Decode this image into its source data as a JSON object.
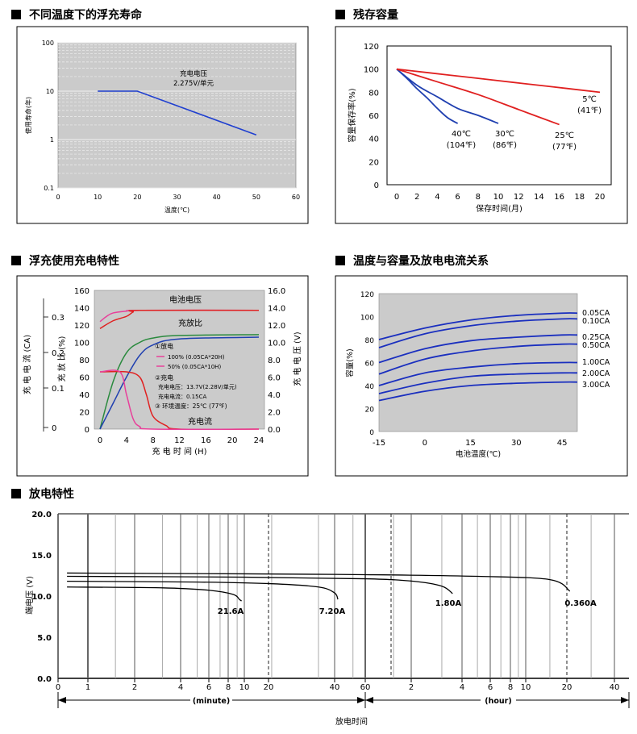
{
  "sections": {
    "s1": "不同温度下的浮充寿命",
    "s2": "残存容量",
    "s3": "浮充使用充电特性",
    "s4": "温度与容量及放电电流关系",
    "s5": "放电特性"
  },
  "chart_data": [
    {
      "id": "float-life",
      "type": "line",
      "xlabel": "温度(℃)",
      "ylabel": "使用寿命(年)",
      "xlim": [
        0,
        60
      ],
      "xticks": [
        "0",
        "10",
        "20",
        "30",
        "40",
        "50",
        "60"
      ],
      "ylim": [
        0.1,
        100
      ],
      "yscale": "log",
      "yticks": [
        "0.1",
        "1",
        "10",
        "100"
      ],
      "grid": true,
      "annotation": [
        "充电电压",
        "2.275V/单元"
      ],
      "series": [
        {
          "x": [
            10,
            20,
            50
          ],
          "y": [
            10,
            10,
            1.25
          ]
        }
      ]
    },
    {
      "id": "residual-capacity",
      "type": "line",
      "xlabel": "保存时间(月)",
      "ylabel": "容量保存率(%)",
      "xlim": [
        0,
        20
      ],
      "xticks": [
        "0",
        "2",
        "4",
        "6",
        "8",
        "10",
        "12",
        "14",
        "16",
        "18",
        "20"
      ],
      "ylim": [
        0,
        120
      ],
      "yticks": [
        "0",
        "20",
        "40",
        "60",
        "80",
        "100",
        "120"
      ],
      "series": [
        {
          "label": [
            "40℃",
            "(104℉)"
          ],
          "color": "#1f3fb0",
          "x": [
            0,
            1,
            2,
            3,
            4,
            5,
            6
          ],
          "y": [
            100,
            92,
            83,
            75,
            66,
            58,
            53
          ]
        },
        {
          "label": [
            "30℃",
            "(86℉)"
          ],
          "color": "#1f3fb0",
          "x": [
            0,
            2,
            4,
            6,
            8,
            10
          ],
          "y": [
            100,
            86,
            76,
            66,
            60,
            53
          ]
        },
        {
          "label": [
            "25℃",
            "(77℉)"
          ],
          "color": "#e02020",
          "x": [
            0,
            4,
            8,
            12,
            16
          ],
          "y": [
            100,
            89,
            78,
            65,
            52
          ]
        },
        {
          "label": [
            "5℃",
            "(41℉)"
          ],
          "color": "#e02020",
          "x": [
            0,
            5,
            10,
            15,
            20
          ],
          "y": [
            100,
            95,
            90,
            85,
            80
          ]
        }
      ]
    },
    {
      "id": "float-charge",
      "type": "line",
      "xlabel": "充 电 时 间 (H)",
      "xlim": [
        0,
        24
      ],
      "xticks": [
        "0",
        "4",
        "8",
        "12",
        "16",
        "20",
        "24"
      ],
      "y_left_outer": {
        "label": "充 电 电 流 (CA)",
        "ticks": [
          "0.3",
          "0.2",
          "0.1",
          "0"
        ]
      },
      "y_left": {
        "label": "充 放 比 (%)",
        "ticks": [
          "160",
          "140",
          "120",
          "100",
          "80",
          "60",
          "40",
          "20",
          "0"
        ]
      },
      "y_right": {
        "label": "充 电 电 压 (V)",
        "ticks": [
          "16.0",
          "14.0",
          "12.0",
          "10.0",
          "8.0",
          "6.0",
          "4.0",
          "2.0",
          "0.0"
        ]
      },
      "labels": {
        "voltage": "电池电压",
        "ratio": "充放比",
        "current": "充电流",
        "n1": "①放电",
        "n1a": "100% (0.05CA*20H)",
        "n1b": "50% (0.05CA*10H)",
        "n2": "②充电",
        "n2a": "充电电压：13.7V(2.28V/单元)",
        "n2b": "充电电流：0.15CA",
        "n3": "③ 环境温度：25℃ (77℉)"
      },
      "series": [
        {
          "name": "voltage_100",
          "color": "#e8409a",
          "axis": "voltage",
          "x": [
            0,
            1,
            2,
            4,
            6,
            24
          ],
          "y": [
            12.4,
            13.0,
            13.4,
            13.6,
            13.7,
            13.7
          ]
        },
        {
          "name": "voltage_50",
          "color": "#e02020",
          "axis": "voltage",
          "x": [
            0,
            2,
            4,
            5,
            6,
            24
          ],
          "y": [
            11.6,
            12.5,
            13.0,
            13.5,
            13.7,
            13.7
          ]
        },
        {
          "name": "ratio_100",
          "color": "#2a8a3e",
          "axis": "ratio",
          "x": [
            0,
            2,
            4,
            6,
            8,
            12,
            24
          ],
          "y": [
            0,
            55,
            88,
            100,
            105,
            108,
            109
          ]
        },
        {
          "name": "ratio_50",
          "color": "#1f3fb0",
          "axis": "ratio",
          "x": [
            0,
            2,
            4,
            6,
            8,
            12,
            24
          ],
          "y": [
            0,
            30,
            60,
            85,
            97,
            104,
            106
          ]
        },
        {
          "name": "current_100",
          "color": "#e02020",
          "axis": "ratio",
          "x": [
            0,
            4,
            6,
            7,
            8,
            10,
            12,
            24
          ],
          "y": [
            66,
            66,
            60,
            40,
            15,
            4,
            0,
            0
          ]
        },
        {
          "name": "current_50",
          "color": "#e8409a",
          "axis": "ratio",
          "x": [
            0,
            3,
            4,
            5,
            6,
            8,
            24
          ],
          "y": [
            66,
            66,
            40,
            12,
            3,
            0,
            0
          ]
        }
      ]
    },
    {
      "id": "temp-capacity",
      "type": "line",
      "xlabel": "电池温度(℃)",
      "ylabel": "容量(%)",
      "xlim": [
        -15,
        50
      ],
      "xticks": [
        "-15",
        "0",
        "15",
        "30",
        "45"
      ],
      "ylim": [
        0,
        120
      ],
      "yticks": [
        "0",
        "20",
        "40",
        "60",
        "80",
        "100",
        "120"
      ],
      "series": [
        {
          "name": "0.05CA",
          "x": [
            -15,
            0,
            15,
            30,
            45,
            50
          ],
          "y": [
            80,
            90,
            97,
            101,
            103,
            103
          ]
        },
        {
          "name": "0.10CA",
          "x": [
            -15,
            0,
            15,
            30,
            45,
            50
          ],
          "y": [
            73,
            85,
            92,
            96,
            98,
            98
          ]
        },
        {
          "name": "0.25CA",
          "x": [
            -15,
            0,
            15,
            30,
            45,
            50
          ],
          "y": [
            60,
            72,
            79,
            82,
            84,
            84
          ]
        },
        {
          "name": "0.50CA",
          "x": [
            -15,
            0,
            15,
            30,
            45,
            50
          ],
          "y": [
            50,
            63,
            70,
            74,
            76,
            76
          ]
        },
        {
          "name": "1.00CA",
          "x": [
            -15,
            0,
            15,
            30,
            45,
            50
          ],
          "y": [
            40,
            51,
            56,
            59,
            60,
            60
          ]
        },
        {
          "name": "2.00CA",
          "x": [
            -15,
            0,
            15,
            30,
            45,
            50
          ],
          "y": [
            33,
            42,
            48,
            50,
            51,
            51
          ]
        },
        {
          "name": "3.00CA",
          "x": [
            -15,
            0,
            15,
            30,
            45,
            50
          ],
          "y": [
            27,
            35,
            40,
            42,
            43,
            43
          ]
        }
      ]
    },
    {
      "id": "discharge",
      "type": "line",
      "xlabel": "放电时间",
      "ylabel": "端电压 (V)",
      "ylim": [
        0,
        20
      ],
      "yticks": [
        "0.0",
        "5.0",
        "10.0",
        "15.0",
        "20.0"
      ],
      "xticks": [
        "0",
        "1",
        "2",
        "4",
        "6",
        "8",
        "10",
        "20",
        "40",
        "60",
        "2",
        "4",
        "6",
        "8",
        "10",
        "20",
        "40"
      ],
      "unit_minute": "(minute)",
      "unit_hour": "(hour)",
      "series": [
        {
          "label": "21.6A",
          "t": [
            0.3,
            3,
            6,
            8.5,
            9.3,
            9.6
          ],
          "y": [
            11.1,
            11.0,
            10.7,
            10.2,
            9.6,
            9.4
          ]
        },
        {
          "label": "7.20A",
          "t": [
            0.3,
            5,
            15,
            30,
            38,
            40
          ],
          "y": [
            11.8,
            11.7,
            11.5,
            11.1,
            10.4,
            9.6
          ]
        },
        {
          "label": "1.80A",
          "t": [
            0.3,
            10,
            60,
            120,
            180,
            210
          ],
          "y": [
            12.4,
            12.3,
            12.1,
            11.8,
            11.2,
            10.3
          ]
        },
        {
          "label": "0.360A",
          "t": [
            0.3,
            10,
            60,
            300,
            900,
            1260
          ],
          "y": [
            12.8,
            12.7,
            12.6,
            12.4,
            12.0,
            10.6
          ]
        }
      ]
    }
  ]
}
